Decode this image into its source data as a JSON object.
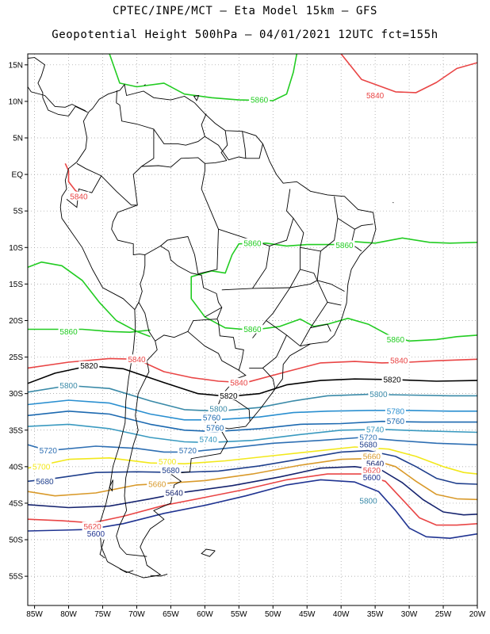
{
  "title_line1": "CPTEC/INPE/MCT –  Eta Model 15km – GFS",
  "title_line2": "Geopotential Height 500hPa – 04/01/2021 12UTC fct=155h",
  "map": {
    "lon_range": [
      -86,
      -20
    ],
    "lat_range": [
      -59,
      16.5
    ],
    "lon_ticks": [
      "85W",
      "80W",
      "75W",
      "70W",
      "65W",
      "60W",
      "55W",
      "50W",
      "45W",
      "40W",
      "35W",
      "30W",
      "25W",
      "20W"
    ],
    "lat_ticks": [
      "15N",
      "10N",
      "5N",
      "EQ",
      "5S",
      "10S",
      "15S",
      "20S",
      "25S",
      "30S",
      "35S",
      "40S",
      "45S",
      "50S",
      "55S"
    ],
    "grid": "dotted",
    "colors": {
      "5560": "#0b1a5e",
      "5600": "#1f3391",
      "5620": "#e94545",
      "5640": "#15236e",
      "5660": "#d99a2b",
      "5680": "#1f3f8c",
      "5700": "#f2e81b",
      "5720": "#2e6fb3",
      "5740": "#3a9ac0",
      "5760": "#1c69b0",
      "5780": "#2a8fd0",
      "5800": "#3a8aa8",
      "5820": "#000000",
      "5840": "#e94545",
      "5860": "#22cc22",
      "border": "#000000"
    }
  },
  "contours": [
    {
      "value": "5860",
      "label_positions": [
        [
          -52,
          10.2
        ],
        [
          -80,
          -21.5
        ],
        [
          -53,
          -9.4
        ],
        [
          -39.5,
          -9.7
        ],
        [
          -53,
          -21.2
        ],
        [
          -32,
          -22.6
        ]
      ]
    },
    {
      "value": "5840",
      "label_positions": [
        [
          -35,
          10.8
        ],
        [
          -78.5,
          -3
        ],
        [
          -70,
          -25.3
        ],
        [
          -55,
          -28.5
        ],
        [
          -31.5,
          -25.5
        ]
      ]
    },
    {
      "value": "5820",
      "label_positions": [
        [
          -77,
          -26.2
        ],
        [
          -56.5,
          -30.3
        ],
        [
          -32.5,
          -28.1
        ]
      ]
    },
    {
      "value": "5800",
      "label_positions": [
        [
          -80,
          -28.9
        ],
        [
          -58,
          -32.1
        ],
        [
          -34.5,
          -30.1
        ],
        [
          -36,
          -44.7
        ]
      ]
    },
    {
      "value": "5780",
      "label_positions": [
        [
          -32,
          -32.4
        ]
      ]
    },
    {
      "value": "5760",
      "label_positions": [
        [
          -59,
          -33.3
        ],
        [
          -58.5,
          -34.7
        ],
        [
          -32,
          -33.8
        ]
      ]
    },
    {
      "value": "5740",
      "label_positions": [
        [
          -59.5,
          -36.3
        ],
        [
          -35,
          -34.9
        ]
      ]
    },
    {
      "value": "5720",
      "label_positions": [
        [
          -83,
          -37.8
        ],
        [
          -62.5,
          -37.8
        ],
        [
          -36,
          -36
        ]
      ]
    },
    {
      "value": "5700",
      "label_positions": [
        [
          -84,
          -40
        ],
        [
          -65.5,
          -39.3
        ]
      ]
    },
    {
      "value": "5680",
      "label_positions": [
        [
          -83.5,
          -42
        ],
        [
          -65,
          -40.5
        ],
        [
          -36,
          -37
        ]
      ]
    },
    {
      "value": "5660",
      "label_positions": [
        [
          -67,
          -42.4
        ],
        [
          -35.5,
          -38.6
        ]
      ]
    },
    {
      "value": "5640",
      "label_positions": [
        [
          -64.5,
          -43.6
        ],
        [
          -35,
          -39.6
        ]
      ]
    },
    {
      "value": "5620",
      "label_positions": [
        [
          -76.5,
          -48.2
        ],
        [
          -35.5,
          -40.5
        ]
      ]
    },
    {
      "value": "5600",
      "label_positions": [
        [
          -76,
          -49.2
        ],
        [
          -35.5,
          -41.5
        ]
      ]
    }
  ]
}
